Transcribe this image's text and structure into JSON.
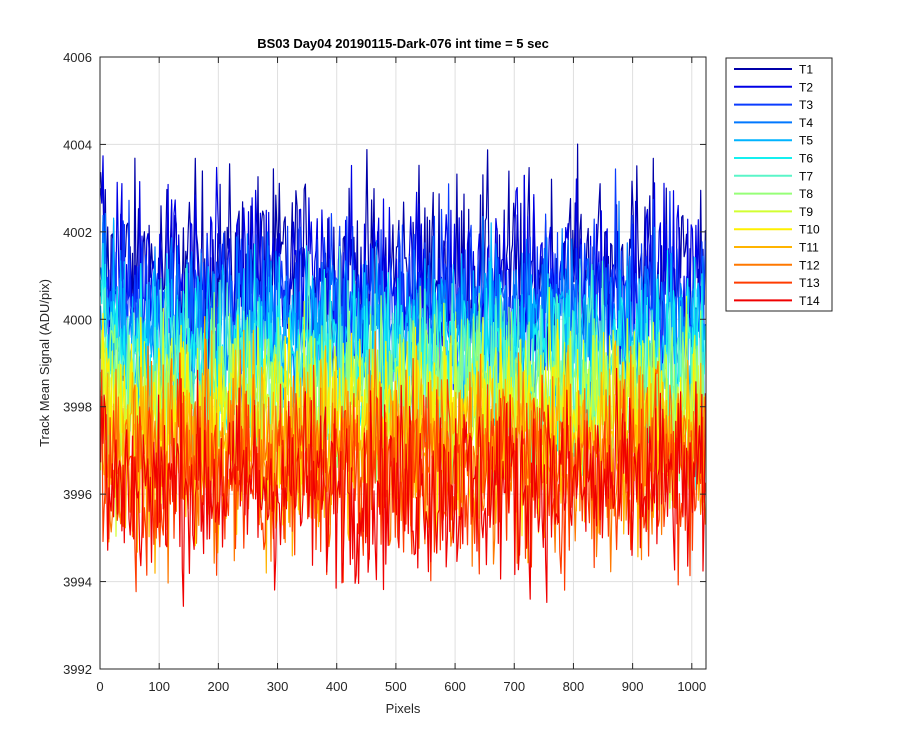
{
  "chart_data": {
    "type": "line",
    "title": "BS03 Day04 20190115-Dark-076 int time = 5 sec",
    "xlabel": "Pixels",
    "ylabel": "Track Mean Signal (ADU/pix)",
    "xlim": [
      0,
      1024
    ],
    "ylim": [
      3992,
      4006
    ],
    "xticks": [
      0,
      100,
      200,
      300,
      400,
      500,
      600,
      700,
      800,
      900,
      1000
    ],
    "yticks": [
      3992,
      3994,
      3996,
      3998,
      4000,
      4002,
      4004,
      4006
    ],
    "grid": true,
    "legend_position": "outside-top-right",
    "series": [
      {
        "name": "T1",
        "color": "#0000A8",
        "mean": 4001.1,
        "noise": 1.25
      },
      {
        "name": "T2",
        "color": "#0000E6",
        "mean": 4000.8,
        "noise": 1.2
      },
      {
        "name": "T3",
        "color": "#0A3CFF",
        "mean": 4000.4,
        "noise": 1.15
      },
      {
        "name": "T4",
        "color": "#0078FF",
        "mean": 3999.9,
        "noise": 1.1
      },
      {
        "name": "T5",
        "color": "#00B4FF",
        "mean": 3999.5,
        "noise": 1.1
      },
      {
        "name": "T6",
        "color": "#14F0F0",
        "mean": 3999.1,
        "noise": 1.1
      },
      {
        "name": "T7",
        "color": "#5AF5C8",
        "mean": 3998.7,
        "noise": 1.1
      },
      {
        "name": "T8",
        "color": "#96FF78",
        "mean": 3998.3,
        "noise": 1.1
      },
      {
        "name": "T9",
        "color": "#D2FF32",
        "mean": 3997.9,
        "noise": 1.15
      },
      {
        "name": "T10",
        "color": "#FFF000",
        "mean": 3997.5,
        "noise": 1.2
      },
      {
        "name": "T11",
        "color": "#FFB400",
        "mean": 3997.1,
        "noise": 1.2
      },
      {
        "name": "T12",
        "color": "#FF7800",
        "mean": 3996.8,
        "noise": 1.2
      },
      {
        "name": "T13",
        "color": "#FF3C00",
        "mean": 3996.5,
        "noise": 1.2
      },
      {
        "name": "T14",
        "color": "#F00000",
        "mean": 3996.2,
        "noise": 1.2
      }
    ]
  }
}
